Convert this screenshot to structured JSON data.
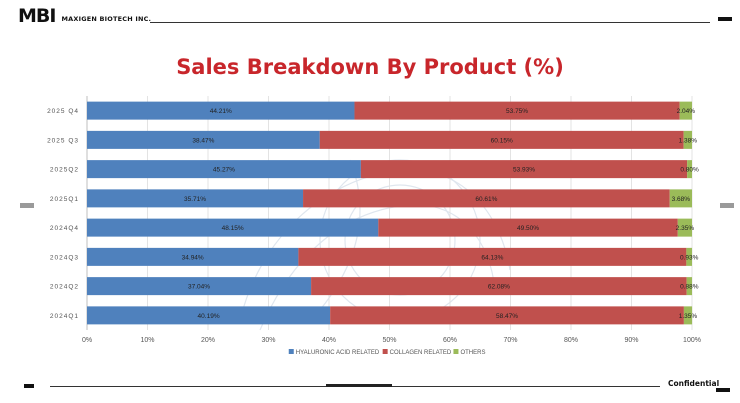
{
  "header": {
    "logo_mark": "MBI",
    "company_name": "MAXIGEN BIOTECH INC."
  },
  "footer": {
    "confidential_label": "Confidential"
  },
  "colors": {
    "hyaluronic": "#4f81bd",
    "collagen": "#c0504d",
    "others": "#9bbb59",
    "title": "#c8262b"
  },
  "chart_data": {
    "type": "bar",
    "orientation": "horizontal",
    "stacked": "percent",
    "title": "Sales Breakdown By Product (%)",
    "categories": [
      "2025 Q4",
      "2025 Q3",
      "2025Q2",
      "2025Q1",
      "2024Q4",
      "2024Q3",
      "2024Q2",
      "2024Q1"
    ],
    "series": [
      {
        "name": "HYALURONIC ACID RELATED",
        "color": "#4f81bd",
        "values": [
          44.21,
          38.47,
          45.27,
          35.71,
          48.15,
          34.94,
          37.04,
          40.19
        ],
        "labels": [
          "44.21%",
          "38.47%",
          "45.27%",
          "35.71%",
          "48.15%",
          "34.94%",
          "37.04%",
          "40.19%"
        ]
      },
      {
        "name": "COLLAGEN RELATED",
        "color": "#c0504d",
        "values": [
          53.75,
          60.15,
          53.93,
          60.61,
          49.5,
          64.13,
          62.08,
          58.47
        ],
        "labels": [
          "53.75%",
          "60.15%",
          "53.93%",
          "60.61%",
          "49.50%",
          "64.13%",
          "62.08%",
          "58.47%"
        ]
      },
      {
        "name": "OTHERS",
        "color": "#9bbb59",
        "values": [
          2.04,
          1.38,
          0.8,
          3.68,
          2.35,
          0.93,
          0.88,
          1.35
        ],
        "labels": [
          "2.04%",
          "1.38%",
          "0.80%",
          "3.68%",
          "2.35%",
          "0.93%",
          "0.88%",
          "1.35%"
        ]
      }
    ],
    "x_ticks": [
      "0%",
      "10%",
      "20%",
      "30%",
      "40%",
      "50%",
      "60%",
      "70%",
      "80%",
      "90%",
      "100%"
    ],
    "xlim": [
      0,
      100
    ],
    "xlabel": "",
    "ylabel": "",
    "grid": true,
    "legend": "bottom-center"
  }
}
